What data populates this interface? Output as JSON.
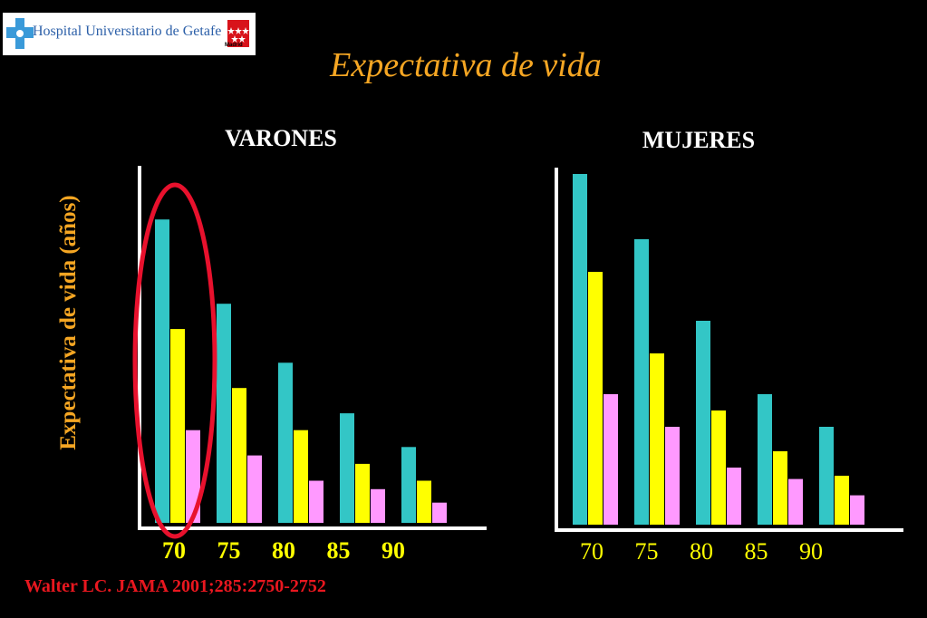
{
  "logo": {
    "text": "Hospital Universitario de Getafe",
    "region_label": "Madrid"
  },
  "title": "Expectativa de vida",
  "ylabel": "Expectativa de vida (años)",
  "citation": "Walter LC. JAMA 2001;285:2750-2752",
  "colors": {
    "top": "#33c6c6",
    "mid": "#ffff00",
    "low": "#ff99ff",
    "highlight": "#e8112d",
    "axis": "#ffffff"
  },
  "chart_data": [
    {
      "type": "bar",
      "title": "VARONES",
      "categories": [
        "70",
        "75",
        "80",
        "85",
        "90"
      ],
      "category_label_color": "#ffff00",
      "category_label_weight": "bold",
      "series": [
        {
          "values": [
            18,
            13,
            9.5,
            6.5,
            4.5
          ],
          "color": "#33c6c6"
        },
        {
          "values": [
            11.5,
            8,
            5.5,
            3.5,
            2.5
          ],
          "color": "#ffff00"
        },
        {
          "values": [
            5.5,
            4,
            2.5,
            2,
            1.2
          ],
          "color": "#ff99ff"
        }
      ],
      "ylim": [
        0,
        22
      ],
      "highlight_category": "70"
    },
    {
      "type": "bar",
      "title": "MUJERES",
      "categories": [
        "70",
        "75",
        "80",
        "85",
        "90"
      ],
      "category_label_color": "#ffff00",
      "category_label_weight": "normal",
      "series": [
        {
          "values": [
            21.5,
            17.5,
            12.5,
            8,
            6
          ],
          "color": "#33c6c6"
        },
        {
          "values": [
            15.5,
            10.5,
            7,
            4.5,
            3
          ],
          "color": "#ffff00"
        },
        {
          "values": [
            8,
            6,
            3.5,
            2.8,
            1.8
          ],
          "color": "#ff99ff"
        }
      ],
      "ylim": [
        0,
        22
      ]
    }
  ]
}
